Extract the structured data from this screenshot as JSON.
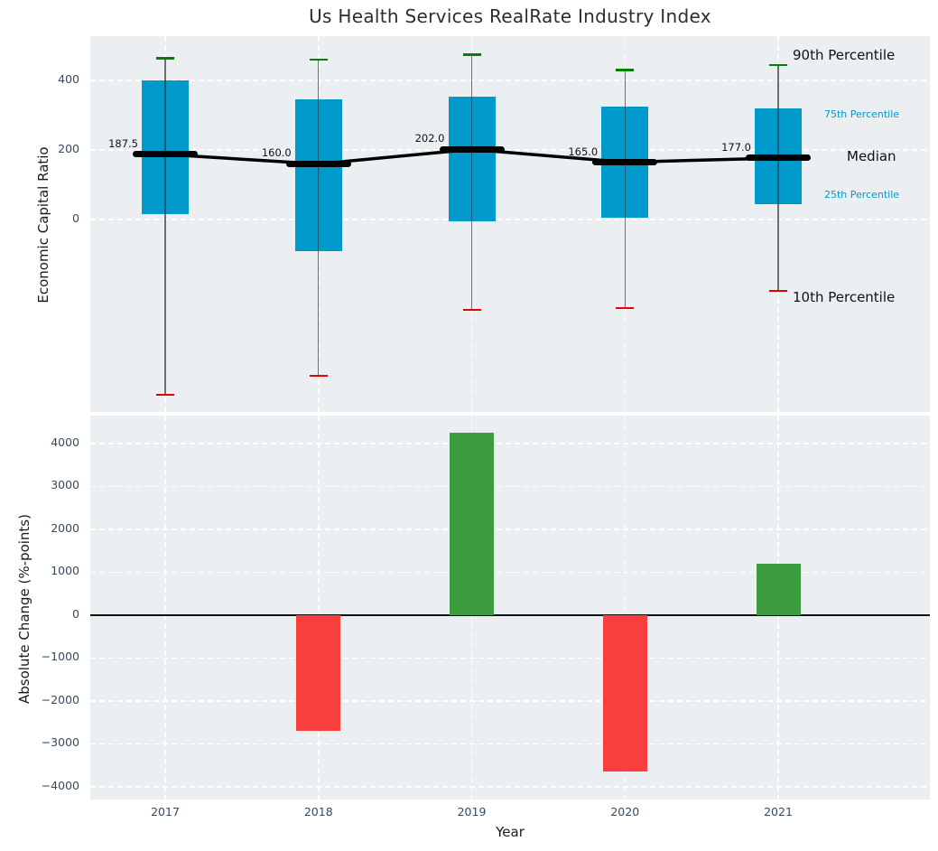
{
  "title": "Us Health Services RealRate Industry Index",
  "colors": {
    "plot_background": "#ebeff1",
    "box_fill": "#0099cc",
    "p90_cap": "#008000",
    "p10_cap": "#e60000",
    "median_line": "#000000",
    "positive_bar": "#3d9c40",
    "negative_bar": "#f93e3e",
    "tick_label": "#35495e",
    "annotation_blue": "#0099cc"
  },
  "chart_data": [
    {
      "type": "box",
      "title": "Us Health Services RealRate Industry Index",
      "ylabel": "Economic Capital Ratio",
      "categories": [
        "2017",
        "2018",
        "2019",
        "2020",
        "2021"
      ],
      "stats": [
        {
          "year": "2017",
          "p10": -505,
          "p25": 15,
          "median": 187.5,
          "p75": 400,
          "p90": 465,
          "median_label": "187.5"
        },
        {
          "year": "2018",
          "p10": -450,
          "p25": -90,
          "median": 160.0,
          "p75": 345,
          "p90": 460,
          "median_label": "160.0"
        },
        {
          "year": "2019",
          "p10": -260,
          "p25": -5,
          "median": 202.0,
          "p75": 355,
          "p90": 475,
          "median_label": "202.0"
        },
        {
          "year": "2020",
          "p10": -255,
          "p25": 5,
          "median": 165.0,
          "p75": 325,
          "p90": 430,
          "median_label": "165.0"
        },
        {
          "year": "2021",
          "p10": -205,
          "p25": 45,
          "median": 177.0,
          "p75": 320,
          "p90": 445,
          "median_label": "177.0"
        }
      ],
      "yticks": [
        0,
        200,
        400
      ],
      "ylim": [
        -554,
        528
      ],
      "grid": true,
      "legend_position": "right-inside",
      "annotations": [
        {
          "text": "90th Percentile",
          "anchor": "p90",
          "color": "#111111",
          "size": 15
        },
        {
          "text": "75th Percentile",
          "anchor": "p75",
          "color": "#0099cc",
          "size": 11
        },
        {
          "text": "Median",
          "anchor": "median",
          "color": "#111111",
          "size": 15
        },
        {
          "text": "25th Percentile",
          "anchor": "p25",
          "color": "#0099cc",
          "size": 11
        },
        {
          "text": "10th Percentile",
          "anchor": "p10",
          "color": "#111111",
          "size": 15
        }
      ]
    },
    {
      "type": "bar",
      "ylabel": "Absolute Change (%-points)",
      "xlabel": "Year",
      "categories": [
        "2017",
        "2018",
        "2019",
        "2020",
        "2021"
      ],
      "values": [
        0,
        -2700,
        4250,
        -3650,
        1200
      ],
      "yticks": [
        -4000,
        -3000,
        -2000,
        -1000,
        0,
        1000,
        2000,
        3000,
        4000
      ],
      "ylim": [
        -4300,
        4650
      ],
      "grid": true,
      "positive_color": "#3d9c40",
      "negative_color": "#f93e3e"
    }
  ]
}
